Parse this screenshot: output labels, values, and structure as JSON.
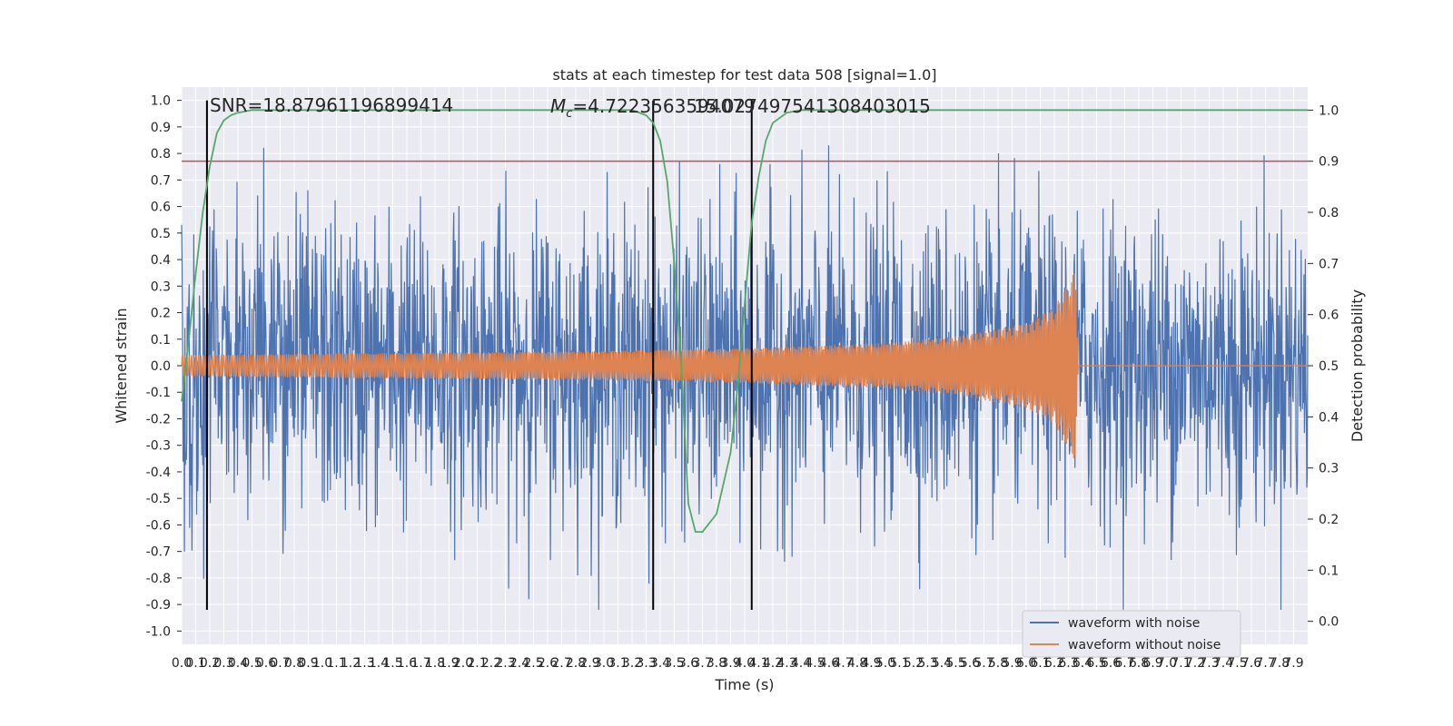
{
  "chart_data": {
    "type": "line",
    "title": "stats at each timestep for test data 508 [signal=1.0]",
    "xlabel": "Time (s)",
    "ylabel": "Whitened strain",
    "y2label": "Detection probability",
    "xlim": [
      0.0,
      8.0
    ],
    "ylim": [
      -1.05,
      1.05
    ],
    "y2lim": [
      -0.045,
      1.045
    ],
    "x_ticks": [
      "0.0",
      "0.1",
      "0.2",
      "0.3",
      "0.4",
      "0.5",
      "0.6",
      "0.7",
      "0.8",
      "0.9",
      "1.0",
      "1.1",
      "1.2",
      "1.3",
      "1.4",
      "1.5",
      "1.6",
      "1.7",
      "1.8",
      "1.9",
      "2.0",
      "2.1",
      "2.2",
      "2.3",
      "2.4",
      "2.5",
      "2.6",
      "2.7",
      "2.8",
      "2.9",
      "3.0",
      "3.1",
      "3.2",
      "3.3",
      "3.4",
      "3.5",
      "3.6",
      "3.7",
      "3.8",
      "3.9",
      "4.0",
      "4.1",
      "4.2",
      "4.3",
      "4.4",
      "4.5",
      "4.6",
      "4.7",
      "4.8",
      "4.9",
      "5.0",
      "5.1",
      "5.2",
      "5.3",
      "5.4",
      "5.5",
      "5.6",
      "5.7",
      "5.8",
      "5.9",
      "6.0",
      "6.1",
      "6.2",
      "6.3",
      "6.4",
      "6.5",
      "6.6",
      "6.7",
      "6.8",
      "6.9",
      "7.0",
      "7.1",
      "7.2",
      "7.3",
      "7.4",
      "7.5",
      "7.6",
      "7.7",
      "7.8",
      "7.9"
    ],
    "y_ticks": [
      "-1.0",
      "-0.9",
      "-0.8",
      "-0.7",
      "-0.6",
      "-0.5",
      "-0.4",
      "-0.3",
      "-0.2",
      "-0.1",
      "0.0",
      "0.1",
      "0.2",
      "0.3",
      "0.4",
      "0.5",
      "0.6",
      "0.7",
      "0.8",
      "0.9",
      "1.0"
    ],
    "y2_ticks": [
      "0.0",
      "0.1",
      "0.2",
      "0.3",
      "0.4",
      "0.5",
      "0.6",
      "0.7",
      "0.8",
      "0.9",
      "1.0"
    ],
    "annotations": {
      "snr": "SNR=18.87961196899414",
      "mc_prefix": "M",
      "mc_sub": "c",
      "mc_value": "=4.7223563594079",
      "overlap": "15.027497541308403015"
    },
    "series": [
      {
        "name": "waveform with noise",
        "color": "#4c72b0",
        "axis": "left",
        "description_stats": {
          "typical_amplitude": 0.35,
          "peak_max": 1.0,
          "peak_min": -0.92
        }
      },
      {
        "name": "waveform without noise",
        "color": "#dd8452",
        "axis": "left",
        "envelope": {
          "t": [
            0.0,
            1.0,
            2.0,
            3.0,
            4.0,
            5.0,
            5.5,
            6.0,
            6.2,
            6.35,
            6.37,
            8.0
          ],
          "amp": [
            0.04,
            0.045,
            0.05,
            0.055,
            0.065,
            0.085,
            0.11,
            0.16,
            0.22,
            0.36,
            0.005,
            0.005
          ]
        }
      },
      {
        "name": "detection probability",
        "color": "#55a868",
        "axis": "right",
        "x": [
          0.0,
          0.05,
          0.1,
          0.15,
          0.2,
          0.25,
          0.3,
          0.35,
          0.4,
          0.5,
          0.6,
          3.0,
          3.2,
          3.3,
          3.35,
          3.4,
          3.45,
          3.5,
          3.55,
          3.6,
          3.65,
          3.7,
          3.8,
          3.9,
          3.95,
          4.0,
          4.05,
          4.1,
          4.15,
          4.2,
          4.3,
          4.4,
          8.0
        ],
        "y": [
          0.43,
          0.55,
          0.68,
          0.8,
          0.89,
          0.955,
          0.98,
          0.99,
          0.995,
          1.0,
          1.0,
          1.0,
          1.0,
          0.99,
          0.975,
          0.94,
          0.86,
          0.7,
          0.5,
          0.23,
          0.175,
          0.175,
          0.21,
          0.33,
          0.46,
          0.62,
          0.78,
          0.87,
          0.94,
          0.975,
          0.995,
          1.0,
          1.0
        ]
      }
    ],
    "threshold": {
      "value": 0.9,
      "axis": "right",
      "color": "#c44e52"
    },
    "vlines": [
      0.18,
      3.35,
      4.05
    ],
    "legend": {
      "position": "lower-right",
      "entries": [
        {
          "label": "waveform with noise",
          "color": "#4c72b0"
        },
        {
          "label": "waveform without noise",
          "color": "#dd8452"
        }
      ]
    },
    "grid": true,
    "background": "#eaeaf2"
  }
}
